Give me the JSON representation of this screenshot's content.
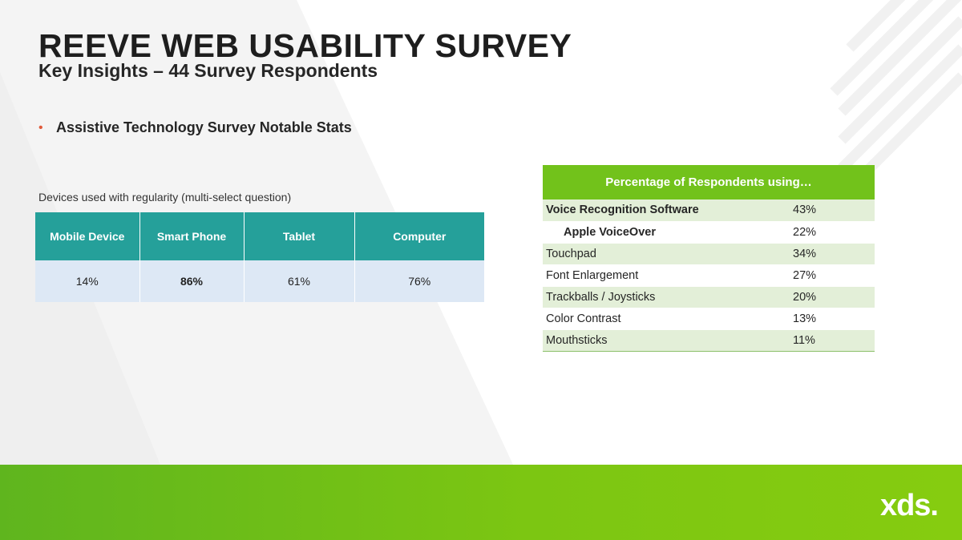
{
  "header": {
    "title": "REEVE WEB USABILITY SURVEY",
    "subtitle": "Key Insights – 44 Survey Respondents"
  },
  "bullet": {
    "text": "Assistive Technology Survey Notable Stats"
  },
  "devices": {
    "caption": "Devices used with regularity (multi-select question)",
    "headers": [
      "Mobile Device",
      "Smart Phone",
      "Tablet",
      "Computer"
    ],
    "values": [
      "14%",
      "86%",
      "61%",
      "76%"
    ]
  },
  "technology": {
    "header": "Percentage of Respondents using…",
    "rows": [
      {
        "name": "Voice Recognition Software",
        "pct": "43%"
      },
      {
        "name": "Apple VoiceOver",
        "pct": "22%"
      },
      {
        "name": "Touchpad",
        "pct": "34%"
      },
      {
        "name": "Font Enlargement",
        "pct": "27%"
      },
      {
        "name": "Trackballs / Joysticks",
        "pct": "20%"
      },
      {
        "name": "Color Contrast",
        "pct": "13%"
      },
      {
        "name": "Mouthsticks",
        "pct": "11%"
      }
    ]
  },
  "footer": {
    "logo": "xds."
  },
  "colors": {
    "teal": "#25a09a",
    "green": "#72c21b",
    "row_shade": "#e3efd8",
    "device_row": "#dde8f5",
    "bullet": "#e05a3a"
  }
}
